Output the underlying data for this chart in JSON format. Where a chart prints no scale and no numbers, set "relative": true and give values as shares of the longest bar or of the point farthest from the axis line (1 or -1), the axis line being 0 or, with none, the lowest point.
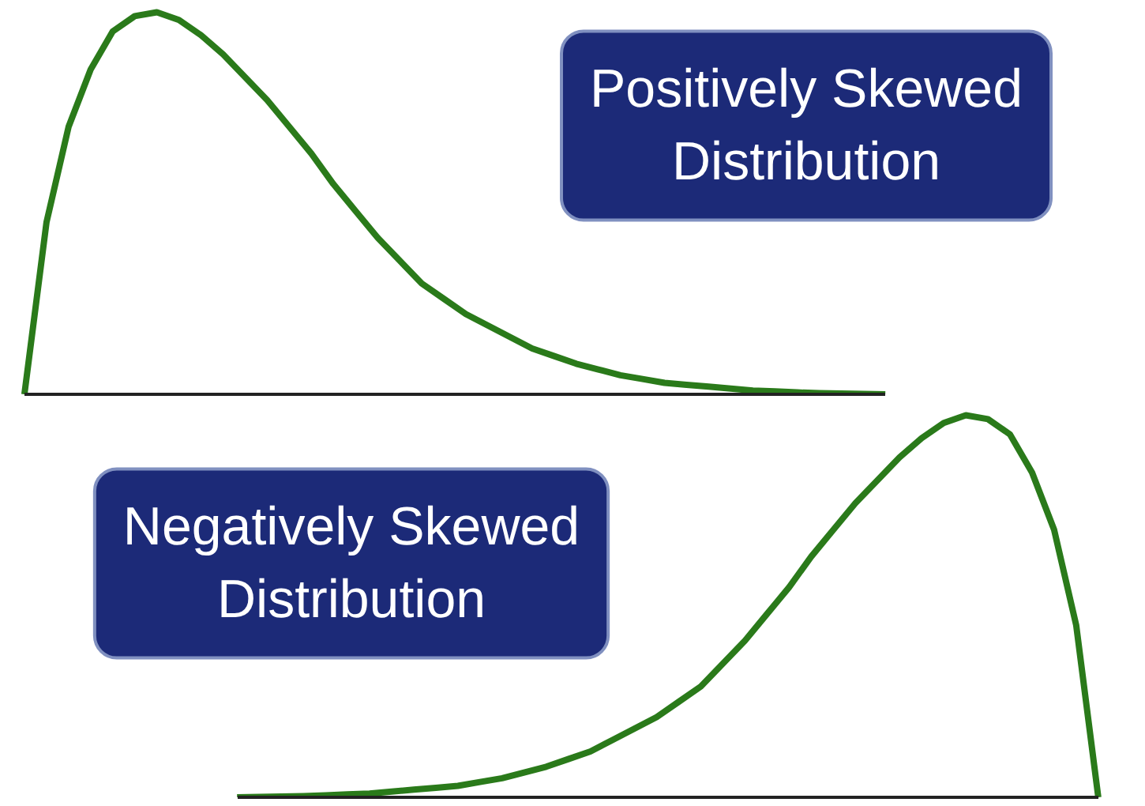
{
  "chart_data": [
    {
      "type": "line",
      "title": "Positively Skewed Distribution",
      "relative": true,
      "grid": false,
      "tick_labels": false,
      "categories": [
        null,
        null,
        null,
        null,
        null,
        null,
        null,
        null,
        null,
        null,
        null,
        null,
        null,
        null,
        null,
        null,
        null,
        null,
        null,
        null,
        null,
        null,
        null,
        null,
        null,
        null,
        null,
        null,
        null,
        null,
        null,
        null,
        null,
        null,
        null,
        null,
        null,
        null,
        null,
        null
      ],
      "series": [
        {
          "color": "#2a7a1a",
          "values": [
            0,
            0.45,
            0.7,
            0.85,
            0.95,
            0.99,
            1.0,
            0.98,
            0.94,
            0.89,
            0.83,
            0.77,
            0.7,
            0.63,
            0.55,
            0.48,
            0.41,
            0.35,
            0.29,
            0.25,
            0.21,
            0.18,
            0.15,
            0.12,
            0.1,
            0.08,
            0.065,
            0.05,
            0.04,
            0.03,
            0.025,
            0.02,
            0.015,
            0.01,
            0.008,
            0.005,
            0.003,
            0.002,
            0.001,
            0
          ]
        }
      ]
    },
    {
      "type": "line",
      "title": "Negatively Skewed Distribution",
      "relative": true,
      "grid": false,
      "tick_labels": false,
      "categories": [
        null,
        null,
        null,
        null,
        null,
        null,
        null,
        null,
        null,
        null,
        null,
        null,
        null,
        null,
        null,
        null,
        null,
        null,
        null,
        null,
        null,
        null,
        null,
        null,
        null,
        null,
        null,
        null,
        null,
        null,
        null,
        null,
        null,
        null,
        null,
        null,
        null,
        null,
        null,
        null
      ],
      "series": [
        {
          "color": "#2a7a1a",
          "values": [
            0,
            0.001,
            0.002,
            0.003,
            0.005,
            0.008,
            0.01,
            0.015,
            0.02,
            0.025,
            0.03,
            0.04,
            0.05,
            0.065,
            0.08,
            0.1,
            0.12,
            0.15,
            0.18,
            0.21,
            0.25,
            0.29,
            0.35,
            0.41,
            0.48,
            0.55,
            0.63,
            0.7,
            0.77,
            0.83,
            0.89,
            0.94,
            0.98,
            1.0,
            0.99,
            0.95,
            0.85,
            0.7,
            0.45,
            0
          ]
        }
      ]
    }
  ]
}
